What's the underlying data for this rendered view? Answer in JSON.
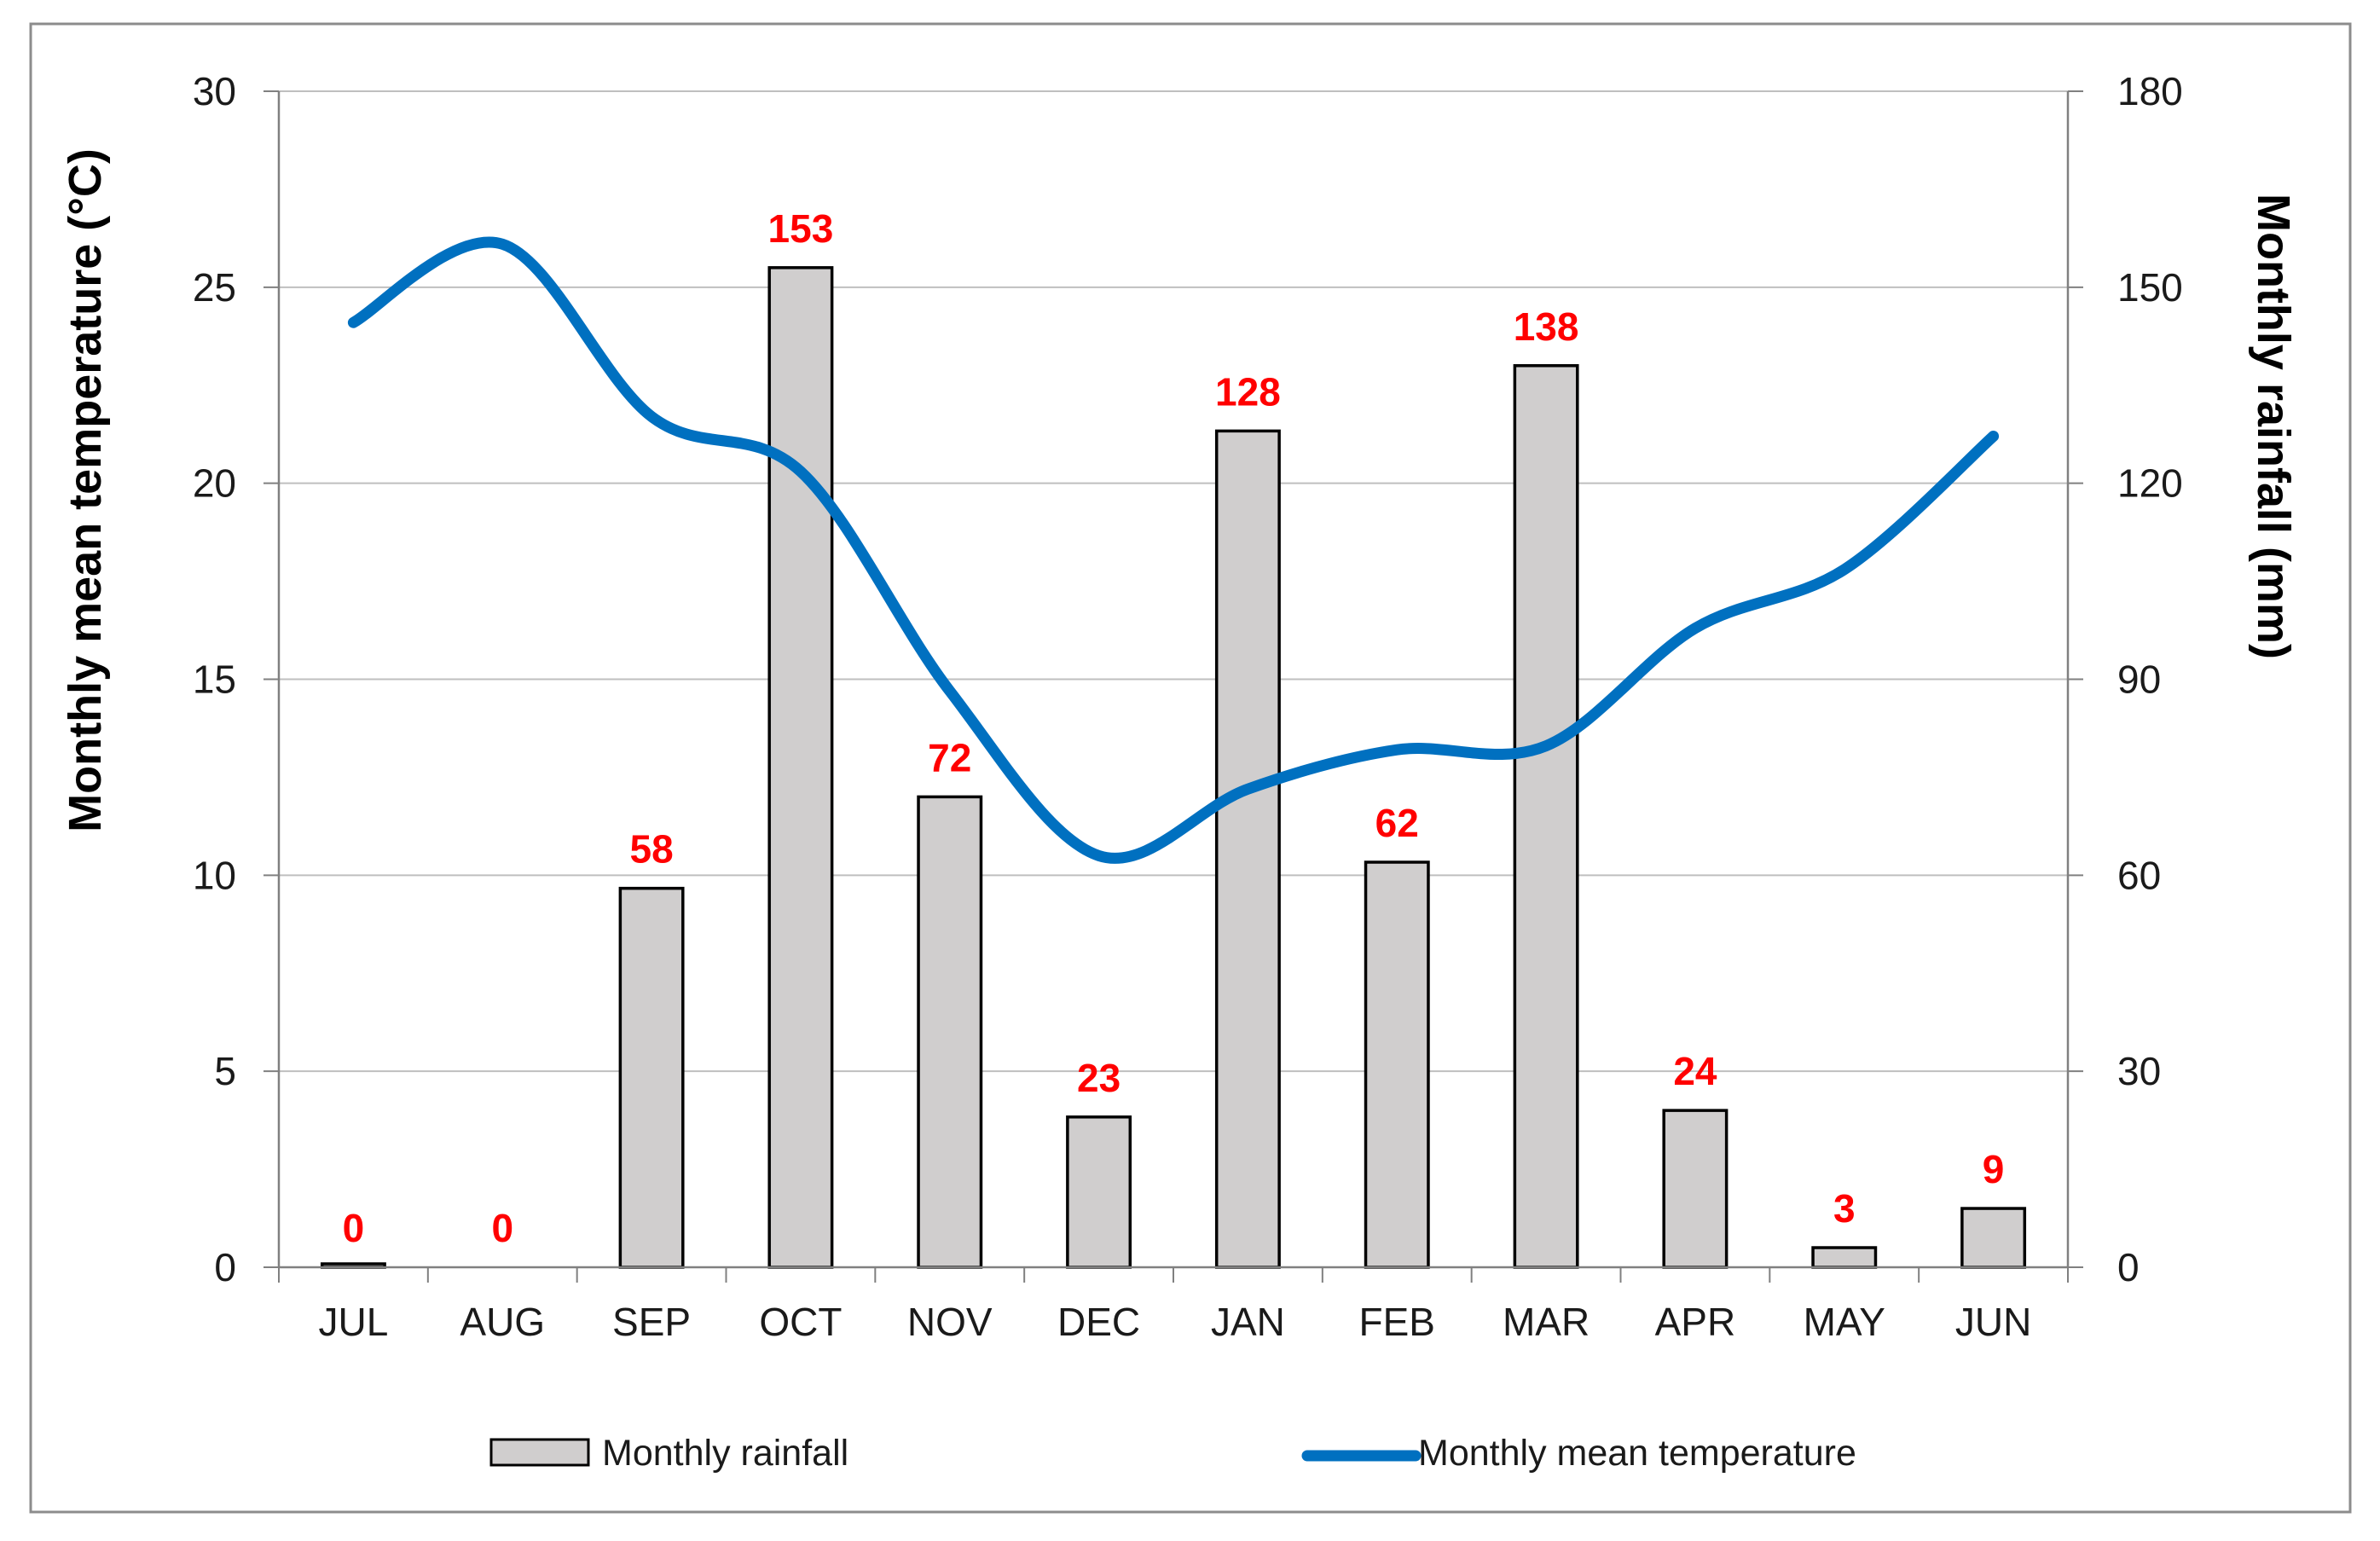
{
  "chart_data": {
    "type": "bar",
    "categories": [
      "JUL",
      "AUG",
      "SEP",
      "OCT",
      "NOV",
      "DEC",
      "JAN",
      "FEB",
      "MAR",
      "APR",
      "MAY",
      "JUN"
    ],
    "series": [
      {
        "name": "Monthly rainfall",
        "type": "bar",
        "axis": "right",
        "values": [
          0,
          0,
          58,
          153,
          72,
          23,
          128,
          62,
          138,
          24,
          3,
          9
        ],
        "data_labels": [
          "0",
          "0",
          "58",
          "153",
          "72",
          "23",
          "128",
          "62",
          "138",
          "24",
          "3",
          "9"
        ]
      },
      {
        "name": "Monthly mean temperature",
        "type": "line",
        "axis": "left",
        "values": [
          24.1,
          26.1,
          21.7,
          20.3,
          14.7,
          10.5,
          12.2,
          13.2,
          13.3,
          16.3,
          17.8,
          21.2
        ]
      }
    ],
    "ylabel": "Monthly mean temperature (°C)",
    "ylim": [
      0,
      30
    ],
    "yticks": [
      "0",
      "5",
      "10",
      "15",
      "20",
      "25",
      "30"
    ],
    "y2label": "Monthly rainfall (mm)",
    "y2lim": [
      0,
      180
    ],
    "y2ticks": [
      "0",
      "30",
      "60",
      "90",
      "120",
      "150",
      "180"
    ],
    "grid": true,
    "legend_position": "bottom",
    "colors": {
      "bar_fill": "#d0cece",
      "bar_stroke": "#000000",
      "line": "#0070c0",
      "data_label": "#ff0000",
      "grid": "#bfbfbf",
      "frame": "#8c8c8c"
    }
  }
}
